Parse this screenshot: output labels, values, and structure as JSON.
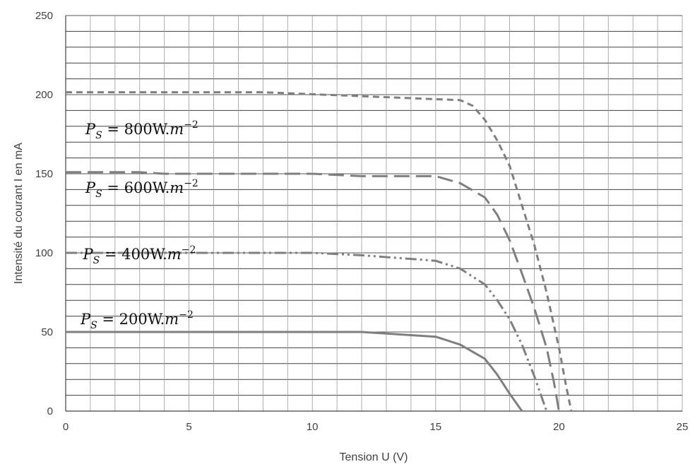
{
  "chart_data": {
    "type": "line",
    "title": "",
    "xlabel": "Tension U (V)",
    "ylabel": "Intensité du courant I en mA",
    "xlim": [
      0,
      25
    ],
    "ylim": [
      0,
      250
    ],
    "xticks": [
      0,
      5,
      10,
      15,
      20,
      25
    ],
    "yticks": [
      0,
      50,
      100,
      150,
      200,
      250
    ],
    "grid": true,
    "colors": {
      "grid": "#404040",
      "series": "#7f7f7f",
      "axis_text": "#404040"
    },
    "series": [
      {
        "name": "P_S = 800W.m^-2",
        "dash": "dashed",
        "points": [
          [
            0,
            201.5
          ],
          [
            8,
            201.5
          ],
          [
            12,
            199
          ],
          [
            16,
            196.5
          ],
          [
            16.5,
            193
          ],
          [
            17,
            184
          ],
          [
            17.5,
            171
          ],
          [
            18,
            155
          ],
          [
            18.5,
            130
          ],
          [
            19,
            105
          ],
          [
            19.5,
            75
          ],
          [
            20,
            40
          ],
          [
            20.3,
            15
          ],
          [
            20.5,
            0
          ]
        ]
      },
      {
        "name": "P_S = 600W.m^-2",
        "dash": "long-dash",
        "points": [
          [
            0,
            151
          ],
          [
            3,
            151
          ],
          [
            4,
            150
          ],
          [
            10,
            150
          ],
          [
            12,
            148.5
          ],
          [
            15,
            148.5
          ],
          [
            16,
            144
          ],
          [
            17,
            135
          ],
          [
            17.5,
            124
          ],
          [
            18,
            108
          ],
          [
            18.5,
            87
          ],
          [
            19,
            65
          ],
          [
            19.5,
            40
          ],
          [
            19.8,
            18
          ],
          [
            20,
            0
          ]
        ]
      },
      {
        "name": "P_S = 400W.m^-2",
        "dash": "dash-dot-dot",
        "points": [
          [
            0,
            100
          ],
          [
            10,
            100
          ],
          [
            12,
            98.5
          ],
          [
            15,
            95
          ],
          [
            16,
            90
          ],
          [
            17,
            80
          ],
          [
            17.5,
            70
          ],
          [
            18,
            58
          ],
          [
            18.5,
            42
          ],
          [
            19,
            22
          ],
          [
            19.5,
            0
          ]
        ]
      },
      {
        "name": "P_S = 200W.m^-2",
        "dash": "solid",
        "points": [
          [
            0,
            50
          ],
          [
            12,
            50
          ],
          [
            14,
            48
          ],
          [
            15,
            47
          ],
          [
            16,
            42
          ],
          [
            17,
            33
          ],
          [
            17.5,
            23
          ],
          [
            18,
            11
          ],
          [
            18.5,
            0
          ]
        ]
      }
    ],
    "labels": [
      {
        "base": "P",
        "sub": "S",
        "rest": " = 800W.",
        "base2": "m",
        "sup": "−2",
        "x": 0.8,
        "y": 175
      },
      {
        "base": "P",
        "sub": "S",
        "rest": " = 600W.",
        "base2": "m",
        "sup": "−2",
        "x": 0.8,
        "y": 138
      },
      {
        "base": "P",
        "sub": "S",
        "rest": " = 400W.",
        "base2": "m",
        "sup": "−2",
        "x": 0.7,
        "y": 96
      },
      {
        "base": "P",
        "sub": "S",
        "rest": " = 200W.",
        "base2": "m",
        "sup": "−2",
        "x": 0.6,
        "y": 55
      }
    ]
  }
}
